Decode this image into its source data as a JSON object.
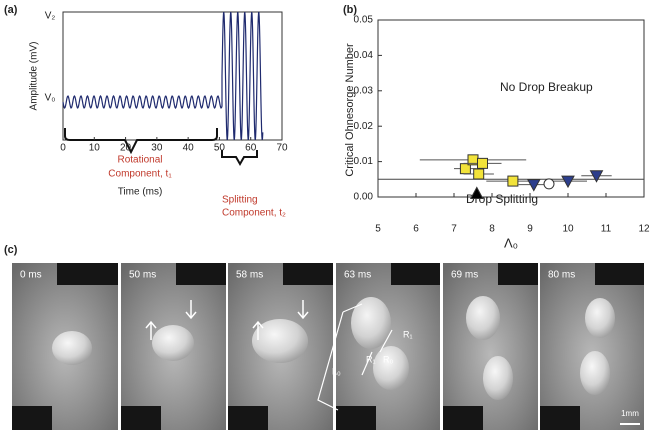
{
  "chart_data": [
    {
      "type": "waveform",
      "panel_label": "(a)",
      "ylabel": "Amplitude (mV)",
      "xlabel": "Time      (ms)",
      "ytick_labels": [
        "V₂",
        "V₀"
      ],
      "xlim": [
        0,
        70
      ],
      "xticks": [
        0,
        10,
        20,
        30,
        40,
        50,
        60,
        70
      ],
      "line_color": "#1f2a6e",
      "annotations": [
        "Rotational",
        "Component,  t₁",
        "Splitting",
        "Component,  t₂"
      ]
    },
    {
      "type": "scatter",
      "panel_label": "(b)",
      "ylabel": "Critical Ohnesorge Number",
      "xlabel": "Λ₀",
      "xlim": [
        5,
        12
      ],
      "xticks": [
        5,
        6,
        7,
        8,
        9,
        10,
        11,
        12
      ],
      "ylim": [
        0,
        0.05
      ],
      "yticks": [
        {
          "value": 0,
          "label": "0.00"
        },
        {
          "value": 0.01,
          "label": "0.01"
        },
        {
          "value": 0.02,
          "label": "0.02"
        },
        {
          "value": 0.03,
          "label": "0.03"
        },
        {
          "value": 0.04,
          "label": "0.04"
        },
        {
          "value": 0.05,
          "label": "0.05"
        }
      ],
      "threshold": 0.005,
      "series": [
        {
          "marker": "square",
          "color": "#f2e33a",
          "x": [
            7.3,
            7.5,
            7.75,
            7.65,
            8.55
          ],
          "values": [
            0.008,
            0.0105,
            0.0095,
            0.0065,
            0.0045
          ],
          "xerr": [
            0.3,
            1.4,
            0.5,
            0.4,
            0.7
          ],
          "yerr": [
            0.001,
            0.0015,
            0.001,
            0.001,
            0.0005
          ]
        },
        {
          "marker": "triangle-down",
          "color": "#2c3e8c",
          "x": [
            9.1,
            10.0,
            10.75
          ],
          "values": [
            0.0035,
            0.0045,
            0.006
          ],
          "xerr": [
            0.4,
            0.5,
            0.4
          ],
          "yerr": [
            0.0005,
            0.0005,
            0.0005
          ]
        },
        {
          "marker": "triangle-up",
          "color": "#000000",
          "x": [
            7.6
          ],
          "values": [
            0.001
          ],
          "xerr": [
            0
          ],
          "yerr": [
            0
          ]
        },
        {
          "marker": "circle",
          "color": "#ffffff",
          "x": [
            9.5
          ],
          "values": [
            0.0037
          ],
          "xerr": [
            0
          ],
          "yerr": [
            0
          ]
        }
      ],
      "annotations": [
        "No Drop Breakup",
        "Drop Splitting"
      ]
    }
  ],
  "photos": {
    "panel_label": "(c)",
    "frames": [
      "0 ms",
      "50 ms",
      "58 ms",
      "63 ms",
      "69 ms",
      "80 ms"
    ],
    "dimension_labels": [
      "L₀",
      "R₁",
      "R₁",
      "R₀"
    ],
    "scale_bar": "1mm"
  }
}
